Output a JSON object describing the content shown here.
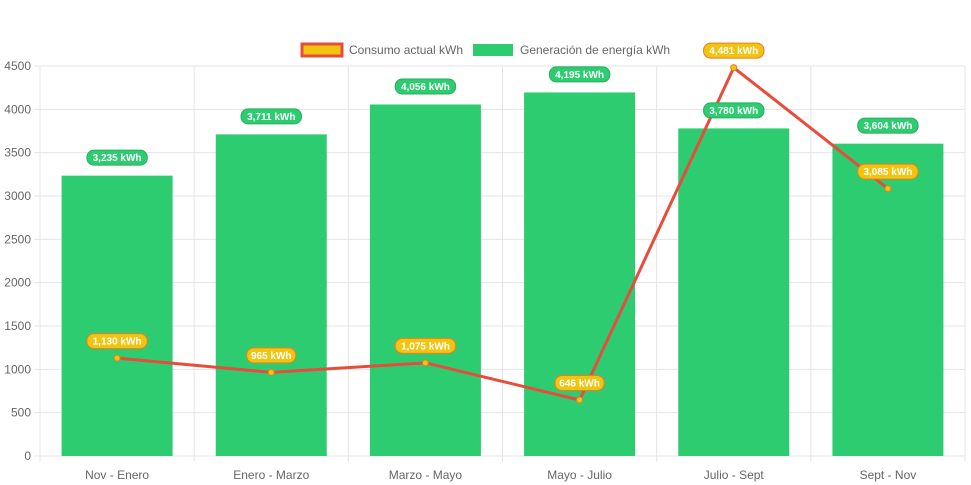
{
  "chart_data": {
    "type": "bar",
    "categories": [
      "Nov - Enero",
      "Enero - Marzo",
      "Marzo - Mayo",
      "Mayo - Julio",
      "Julio - Sept",
      "Sept - Nov"
    ],
    "series": [
      {
        "name": "Generación de energía kWh",
        "type": "bar",
        "values": [
          3235,
          3711,
          4056,
          4195,
          3780,
          3604
        ],
        "labels": [
          "3,235 kWh",
          "3,711 kWh",
          "4,056 kWh",
          "4,195 kWh",
          "3,780 kWh",
          "3,604 kWh"
        ],
        "color": "#2ecc71"
      },
      {
        "name": "Consumo actual kWh",
        "type": "line",
        "values": [
          1130,
          965,
          1075,
          646,
          4481,
          3085
        ],
        "labels": [
          "1,130 kWh",
          "965 kWh",
          "1,075 kWh",
          "646 kWh",
          "4,481 kWh",
          "3,085 kWh"
        ],
        "color": "#e74c3c",
        "point_color": "#f1c40f"
      }
    ],
    "ylim": [
      0,
      4500
    ],
    "yticks": [
      0,
      500,
      1000,
      1500,
      2000,
      2500,
      3000,
      3500,
      4000,
      4500
    ],
    "legend_position": "top",
    "grid": true
  },
  "legend": {
    "consumo_label": "Consumo actual kWh",
    "generacion_label": "Generación de energía kWh"
  }
}
